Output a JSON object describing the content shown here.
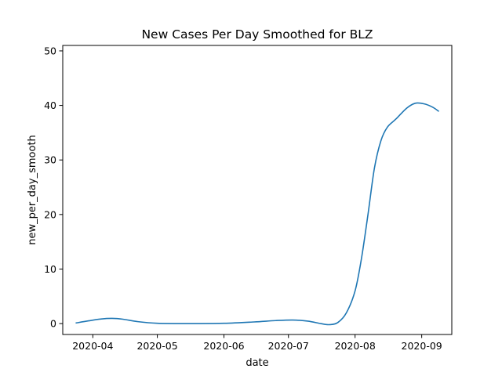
{
  "chart_data": {
    "type": "line",
    "title": "New Cases Per Day Smoothed for BLZ",
    "xlabel": "date",
    "ylabel": "new_per_day_smooth",
    "x_axis_type": "date",
    "xlim": [
      "2020-03-18",
      "2020-09-15"
    ],
    "ylim": [
      -2,
      51
    ],
    "x_ticks": [
      "2020-04-01",
      "2020-05-01",
      "2020-06-01",
      "2020-07-01",
      "2020-08-01",
      "2020-09-01"
    ],
    "x_tick_labels": [
      "2020-04",
      "2020-05",
      "2020-06",
      "2020-07",
      "2020-08",
      "2020-09"
    ],
    "y_ticks": [
      0,
      10,
      20,
      30,
      40,
      50
    ],
    "y_tick_labels": [
      "0",
      "10",
      "20",
      "30",
      "40",
      "50"
    ],
    "grid": false,
    "legend": "none",
    "series": [
      {
        "color": "#1f77b4",
        "points": [
          [
            "2020-03-24",
            0.1
          ],
          [
            "2020-03-30",
            0.5
          ],
          [
            "2020-04-05",
            0.85
          ],
          [
            "2020-04-10",
            0.95
          ],
          [
            "2020-04-15",
            0.8
          ],
          [
            "2020-04-22",
            0.35
          ],
          [
            "2020-05-01",
            0.05
          ],
          [
            "2020-05-15",
            0.0
          ],
          [
            "2020-06-01",
            0.05
          ],
          [
            "2020-06-15",
            0.3
          ],
          [
            "2020-06-25",
            0.55
          ],
          [
            "2020-07-03",
            0.65
          ],
          [
            "2020-07-10",
            0.45
          ],
          [
            "2020-07-16",
            0.0
          ],
          [
            "2020-07-20",
            -0.2
          ],
          [
            "2020-07-24",
            0.2
          ],
          [
            "2020-07-28",
            2.0
          ],
          [
            "2020-08-01",
            6.0
          ],
          [
            "2020-08-04",
            12.0
          ],
          [
            "2020-08-07",
            20.0
          ],
          [
            "2020-08-10",
            28.5
          ],
          [
            "2020-08-13",
            33.5
          ],
          [
            "2020-08-16",
            36.0
          ],
          [
            "2020-08-20",
            37.5
          ],
          [
            "2020-08-25",
            39.5
          ],
          [
            "2020-08-29",
            40.4
          ],
          [
            "2020-09-02",
            40.3
          ],
          [
            "2020-09-06",
            39.7
          ],
          [
            "2020-09-09",
            38.9
          ]
        ]
      }
    ]
  }
}
